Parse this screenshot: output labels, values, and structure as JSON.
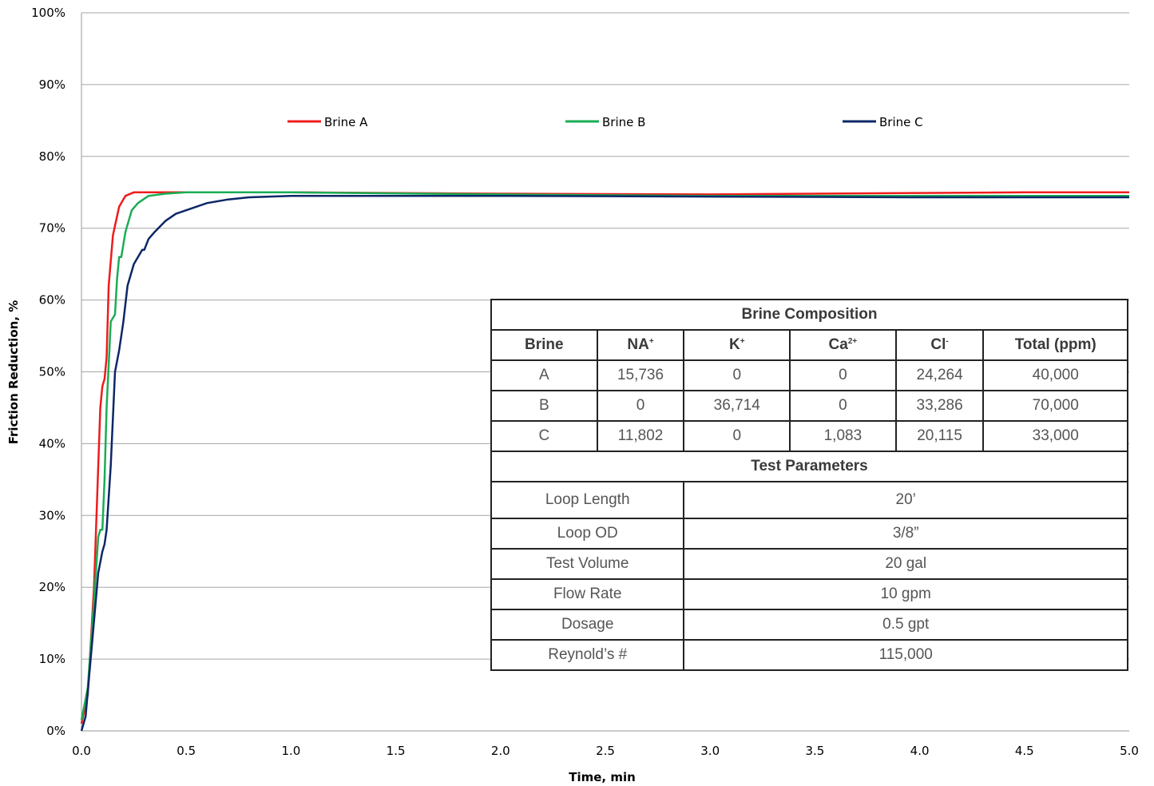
{
  "chart_data": {
    "type": "line",
    "xlabel": "Time, min",
    "ylabel": "Friction Reduction, %",
    "xlim": [
      0,
      5
    ],
    "ylim": [
      0,
      100
    ],
    "x_ticks": [
      "0.0",
      "0.5",
      "1.0",
      "1.5",
      "2.0",
      "2.5",
      "3.0",
      "3.5",
      "4.0",
      "4.5",
      "5.0"
    ],
    "y_ticks": [
      "0%",
      "10%",
      "20%",
      "30%",
      "40%",
      "50%",
      "60%",
      "70%",
      "80%",
      "90%",
      "100%"
    ],
    "grid": "horizontal",
    "legend_position": "top",
    "series": [
      {
        "name": "Brine A",
        "color": "#ee1c1c",
        "x": [
          0,
          0.03,
          0.06,
          0.09,
          0.1,
          0.11,
          0.12,
          0.13,
          0.15,
          0.18,
          0.21,
          0.25,
          0.3,
          0.5,
          1.0,
          2.0,
          3.0,
          4.0,
          4.5,
          5.0
        ],
        "y": [
          1,
          5,
          20,
          45,
          48,
          49,
          52,
          62,
          69,
          73,
          74.5,
          75,
          75,
          75,
          75,
          74.8,
          74.7,
          74.9,
          75,
          75
        ]
      },
      {
        "name": "Brine B",
        "color": "#1aad55",
        "x": [
          0,
          0.03,
          0.06,
          0.08,
          0.09,
          0.1,
          0.11,
          0.12,
          0.14,
          0.16,
          0.17,
          0.18,
          0.19,
          0.21,
          0.24,
          0.27,
          0.32,
          0.4,
          0.5,
          0.7,
          1.0,
          2.0,
          3.0,
          4.0,
          5.0
        ],
        "y": [
          1.5,
          6,
          18,
          27,
          28,
          28,
          35,
          45,
          57,
          58,
          63,
          66,
          66,
          69.5,
          72.5,
          73.5,
          74.5,
          74.8,
          75,
          75,
          75,
          74.7,
          74.5,
          74.5,
          74.5
        ]
      },
      {
        "name": "Brine C",
        "color": "#0c2766",
        "x": [
          0,
          0.02,
          0.05,
          0.08,
          0.1,
          0.11,
          0.12,
          0.14,
          0.16,
          0.18,
          0.2,
          0.22,
          0.25,
          0.27,
          0.29,
          0.3,
          0.32,
          0.35,
          0.4,
          0.45,
          0.5,
          0.6,
          0.7,
          0.8,
          1.0,
          2.0,
          3.0,
          4.0,
          5.0
        ],
        "y": [
          0,
          2,
          12,
          22,
          25,
          26,
          28,
          37,
          50,
          53,
          57,
          62,
          65,
          66,
          67,
          67,
          68.5,
          69.5,
          71,
          72,
          72.5,
          73.5,
          74,
          74.3,
          74.5,
          74.5,
          74.4,
          74.3,
          74.3
        ]
      }
    ]
  },
  "table": {
    "brine_section_title": "Brine Composition",
    "headers": {
      "brine": "Brine",
      "na": "NA",
      "na_sup": "+",
      "k": "K",
      "k_sup": "+",
      "ca": "Ca",
      "ca_sup": "2+",
      "cl": "Cl",
      "cl_sup": "-",
      "total": "Total (ppm)"
    },
    "rows": [
      [
        "A",
        "15,736",
        "0",
        "0",
        "24,264",
        "40,000"
      ],
      [
        "B",
        "0",
        "36,714",
        "0",
        "33,286",
        "70,000"
      ],
      [
        "C",
        "11,802",
        "0",
        "1,083",
        "20,115",
        "33,000"
      ]
    ],
    "params_section_title": "Test Parameters",
    "params": [
      [
        "Loop Length",
        "20’"
      ],
      [
        "Loop OD",
        "3/8”"
      ],
      [
        "Test Volume",
        "20 gal"
      ],
      [
        "Flow Rate",
        "10 gpm"
      ],
      [
        "Dosage",
        "0.5 gpt"
      ],
      [
        "Reynold’s #",
        "115,000"
      ]
    ]
  }
}
